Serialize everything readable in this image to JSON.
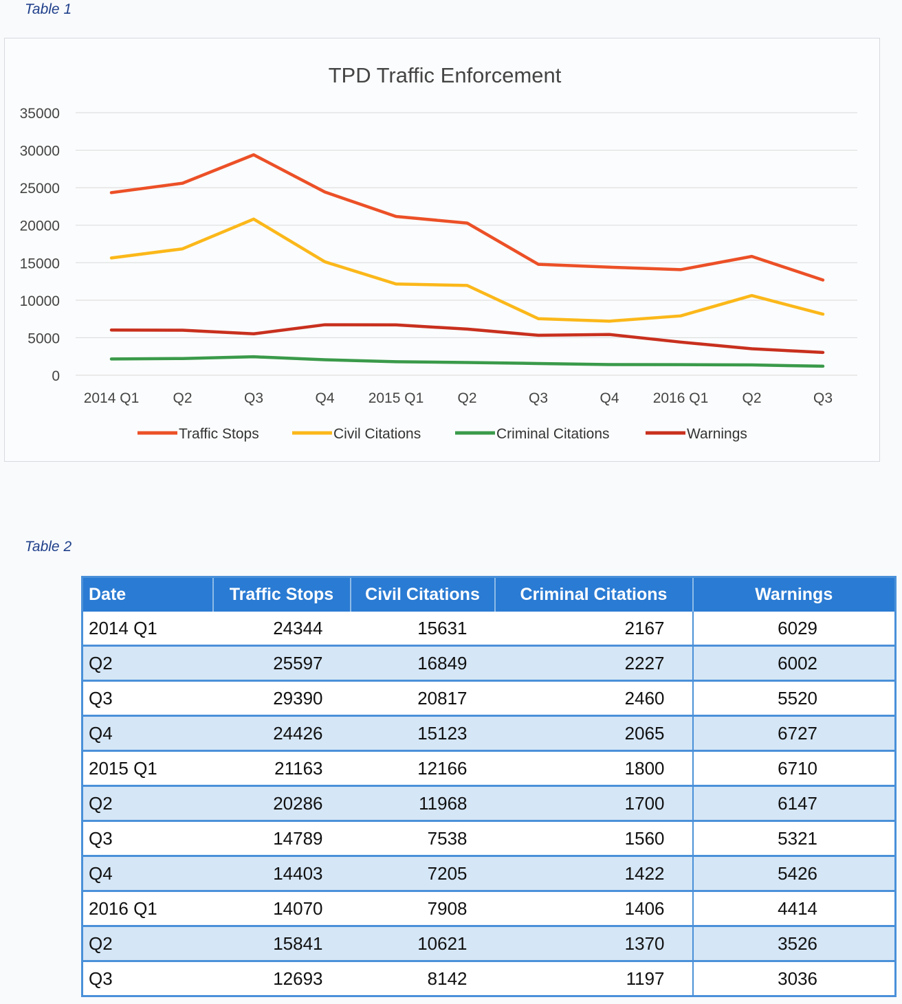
{
  "captions": {
    "table1": "Table 1",
    "table2": "Table 2"
  },
  "chart_data": {
    "type": "line",
    "title": "TPD Traffic Enforcement",
    "categories": [
      "2014 Q1",
      "Q2",
      "Q3",
      "Q4",
      "2015 Q1",
      "Q2",
      "Q3",
      "Q4",
      "2016 Q1",
      "Q2",
      "Q3"
    ],
    "ylim": [
      0,
      35000
    ],
    "yticks": [
      0,
      5000,
      10000,
      15000,
      20000,
      25000,
      30000,
      35000
    ],
    "grid": true,
    "legend": "bottom",
    "series": [
      {
        "name": "Traffic Stops",
        "color": "#ec5027",
        "values": [
          24344,
          25597,
          29390,
          24426,
          21163,
          20286,
          14789,
          14403,
          14070,
          15841,
          12693
        ]
      },
      {
        "name": "Civil Citations",
        "color": "#fbb81a",
        "values": [
          15631,
          16849,
          20817,
          15123,
          12166,
          11968,
          7538,
          7205,
          7908,
          10621,
          8142
        ]
      },
      {
        "name": "Criminal Citations",
        "color": "#3a9a4a",
        "values": [
          2167,
          2227,
          2460,
          2065,
          1800,
          1700,
          1560,
          1422,
          1406,
          1370,
          1197
        ]
      },
      {
        "name": "Warnings",
        "color": "#c8301e",
        "values": [
          6029,
          6002,
          5520,
          6727,
          6710,
          6147,
          5321,
          5426,
          4414,
          3526,
          3036
        ]
      }
    ]
  },
  "table": {
    "headers": [
      "Date",
      "Traffic Stops",
      "Civil Citations",
      "Criminal Citations",
      "Warnings"
    ],
    "rows": [
      [
        "2014 Q1",
        "24344",
        "15631",
        "2167",
        "6029"
      ],
      [
        "Q2",
        "25597",
        "16849",
        "2227",
        "6002"
      ],
      [
        "Q3",
        "29390",
        "20817",
        "2460",
        "5520"
      ],
      [
        "Q4",
        "24426",
        "15123",
        "2065",
        "6727"
      ],
      [
        "2015 Q1",
        "21163",
        "12166",
        "1800",
        "6710"
      ],
      [
        "Q2",
        "20286",
        "11968",
        "1700",
        "6147"
      ],
      [
        "Q3",
        "14789",
        "7538",
        "1560",
        "5321"
      ],
      [
        "Q4",
        "14403",
        "7205",
        "1422",
        "5426"
      ],
      [
        "2016 Q1",
        "14070",
        "7908",
        "1406",
        "4414"
      ],
      [
        "Q2",
        "15841",
        "10621",
        "1370",
        "3526"
      ],
      [
        "Q3",
        "12693",
        "8142",
        "1197",
        "3036"
      ]
    ]
  }
}
